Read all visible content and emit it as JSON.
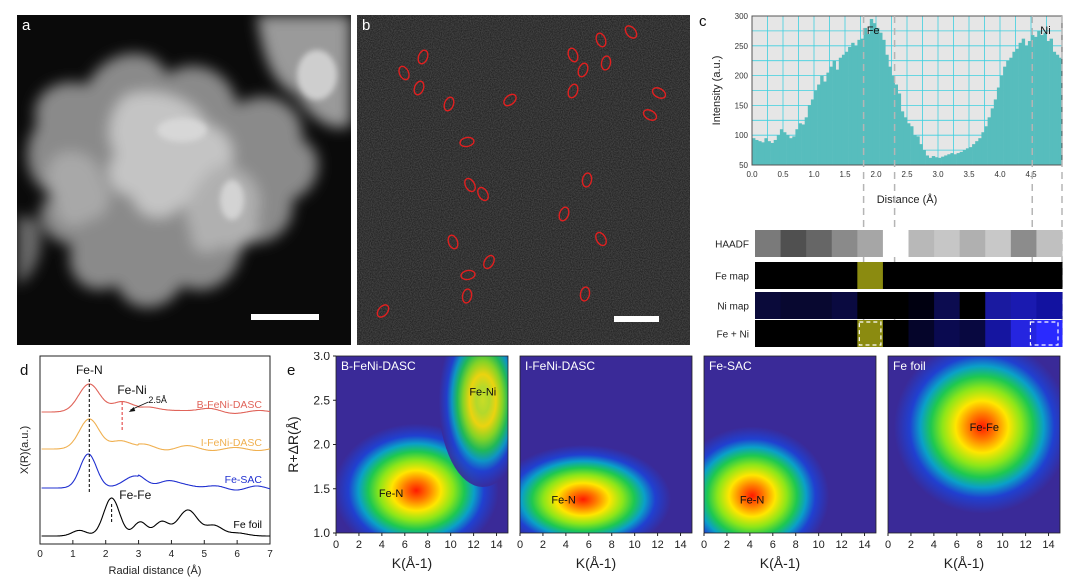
{
  "panels": {
    "a": {
      "label": "a"
    },
    "b": {
      "label": "b"
    },
    "c": {
      "label": "c"
    },
    "d": {
      "label": "d"
    },
    "e": {
      "label": "e"
    }
  },
  "chart_data": [
    {
      "panel": "c",
      "type": "bar",
      "xlabel": "Distance (Å)",
      "ylabel": "Intensity (a.u.)",
      "xlim": [
        0,
        5
      ],
      "ylim": [
        50,
        300
      ],
      "xticks": [
        "0.0",
        "0.5",
        "1.0",
        "1.5",
        "2.0",
        "2.5",
        "3.0",
        "3.5",
        "4.0",
        "4.5"
      ],
      "yticks": [
        "50",
        "100",
        "150",
        "200",
        "250",
        "300"
      ],
      "grid": true,
      "annotations": [
        "Fe",
        "Ni"
      ],
      "x": [
        0.0,
        0.05,
        0.1,
        0.15,
        0.2,
        0.25,
        0.3,
        0.35,
        0.4,
        0.45,
        0.5,
        0.55,
        0.6,
        0.65,
        0.7,
        0.75,
        0.8,
        0.85,
        0.9,
        0.95,
        1.0,
        1.05,
        1.1,
        1.15,
        1.2,
        1.25,
        1.3,
        1.35,
        1.4,
        1.45,
        1.5,
        1.55,
        1.6,
        1.65,
        1.7,
        1.75,
        1.8,
        1.85,
        1.9,
        1.95,
        2.0,
        2.05,
        2.1,
        2.15,
        2.2,
        2.25,
        2.3,
        2.35,
        2.4,
        2.45,
        2.5,
        2.55,
        2.6,
        2.65,
        2.7,
        2.75,
        2.8,
        2.85,
        2.9,
        2.95,
        3.0,
        3.05,
        3.1,
        3.15,
        3.2,
        3.25,
        3.3,
        3.35,
        3.4,
        3.45,
        3.5,
        3.55,
        3.6,
        3.65,
        3.7,
        3.75,
        3.8,
        3.85,
        3.9,
        3.95,
        4.0,
        4.05,
        4.1,
        4.15,
        4.2,
        4.25,
        4.3,
        4.35,
        4.4,
        4.45,
        4.5,
        4.55,
        4.6,
        4.65,
        4.7,
        4.75,
        4.8,
        4.85,
        4.9,
        4.95
      ],
      "values": [
        95,
        92,
        90,
        88,
        95,
        90,
        87,
        92,
        100,
        110,
        105,
        100,
        95,
        98,
        110,
        120,
        118,
        130,
        150,
        160,
        175,
        185,
        200,
        190,
        205,
        215,
        225,
        210,
        230,
        235,
        240,
        248,
        255,
        250,
        260,
        262,
        280,
        270,
        295,
        288,
        280,
        272,
        260,
        235,
        215,
        200,
        185,
        170,
        140,
        130,
        120,
        115,
        100,
        98,
        85,
        75,
        66,
        62,
        65,
        63,
        62,
        64,
        66,
        68,
        70,
        68,
        70,
        72,
        75,
        78,
        80,
        85,
        90,
        95,
        105,
        115,
        130,
        145,
        160,
        180,
        200,
        215,
        225,
        230,
        240,
        245,
        255,
        262,
        250,
        258,
        268,
        265,
        275,
        268,
        272,
        258,
        262,
        240,
        235,
        230
      ]
    },
    {
      "panel": "d",
      "type": "line",
      "xlabel": "Radial distance (Å)",
      "ylabel": "X(R)(a.u.)",
      "xlim": [
        0,
        7
      ],
      "xticks": [
        "0",
        "1",
        "2",
        "3",
        "4",
        "5",
        "6",
        "7"
      ],
      "annotations": [
        "Fe-N",
        "Fe-Ni",
        "2.5Å",
        "Fe-Fe"
      ],
      "series": [
        {
          "name": "B-FeNi-DASC",
          "color": "#e0645a"
        },
        {
          "name": "I-FeNi-DASC",
          "color": "#f0b050"
        },
        {
          "name": "Fe-SAC",
          "color": "#2030d0"
        },
        {
          "name": "Fe foil",
          "color": "#000000"
        }
      ]
    },
    {
      "panel": "e",
      "type": "heatmap",
      "ylabel": "R+ΔR(Å)",
      "xlabel": "K(Å-1)",
      "xlim": [
        0,
        15
      ],
      "ylim": [
        1.0,
        3.0
      ],
      "xticks": [
        "0",
        "2",
        "4",
        "6",
        "8",
        "10",
        "12",
        "14"
      ],
      "yticks": [
        "1.0",
        "1.5",
        "2.0",
        "2.5",
        "3.0"
      ],
      "maps": [
        {
          "title": "B-FeNi-DASC",
          "peaks": [
            "Fe-N",
            "Fe-Ni"
          ]
        },
        {
          "title": "I-FeNi-DASC",
          "peaks": [
            "Fe-N"
          ]
        },
        {
          "title": "Fe-SAC",
          "peaks": [
            "Fe-N"
          ]
        },
        {
          "title": "Fe foil",
          "peaks": [
            "Fe-Fe"
          ]
        }
      ]
    }
  ],
  "eds_map": {
    "rows": [
      "HAADF",
      "Fe map",
      "Ni map",
      "Fe + Ni"
    ]
  }
}
